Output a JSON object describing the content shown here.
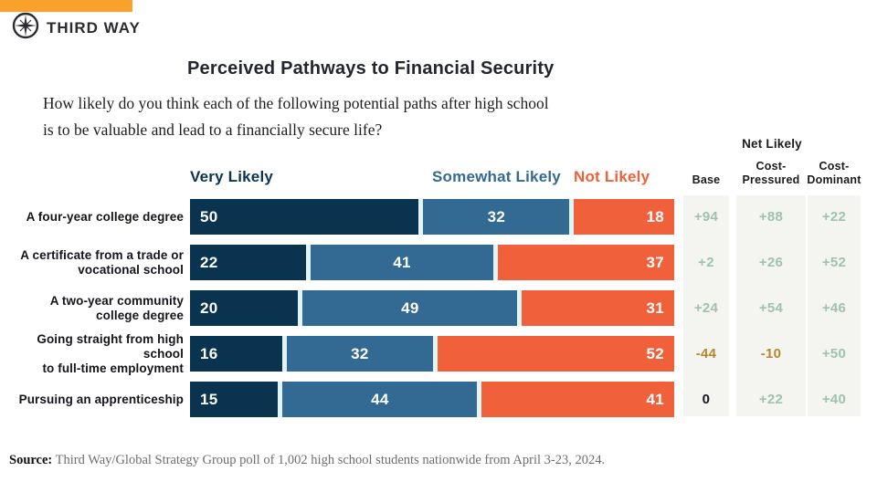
{
  "brand": {
    "name": "THIRD WAY",
    "accent_color": "#f9a12b",
    "logo_color": "#2b2b33"
  },
  "title": "Perceived Pathways to Financial Security",
  "subtitle": "How likely do you think each of the following potential paths after high school\nis to be valuable and lead to a financially secure life?",
  "chart_data": {
    "type": "bar",
    "variant": "horizontal-stacked-100",
    "title": "Perceived Pathways to Financial Security",
    "xlim": [
      0,
      100
    ],
    "legend_position": "top",
    "track_color": "#e1f5f6",
    "categories": [
      "A four-year college degree",
      "A certificate from a trade or\nvocational school",
      "A two-year community\ncollege degree",
      "Going straight from high school\nto full-time employment",
      "Pursuing an apprenticeship"
    ],
    "series": [
      {
        "name": "Very Likely",
        "color": "#0a3350",
        "values": [
          50,
          22,
          20,
          16,
          15
        ]
      },
      {
        "name": "Somewhat Likely",
        "color": "#336a93",
        "values": [
          32,
          41,
          49,
          32,
          44
        ]
      },
      {
        "name": "Not Likely",
        "color": "#f0603a",
        "values": [
          18,
          37,
          31,
          52,
          41
        ]
      }
    ],
    "net_table": {
      "header": "Net Likely",
      "columns": [
        {
          "label": "Base",
          "values": [
            "+94",
            "+2",
            "+24",
            "-44",
            "0"
          ]
        },
        {
          "label": "Cost-\nPressured",
          "values": [
            "+88",
            "+26",
            "+54",
            "-10",
            "+22"
          ]
        },
        {
          "label": "Cost-\nDominant",
          "values": [
            "+22",
            "+52",
            "+46",
            "+50",
            "+40"
          ]
        }
      ],
      "positive_color": "#9fc2ae",
      "negative_color": "#b5872e",
      "zero_color": "#14141c",
      "column_bg": "#f4f4f1"
    }
  },
  "source": {
    "label": "Source:",
    "text": " Third Way/Global Strategy Group poll of 1,002 high school students nationwide from April 3-23, 2024."
  }
}
